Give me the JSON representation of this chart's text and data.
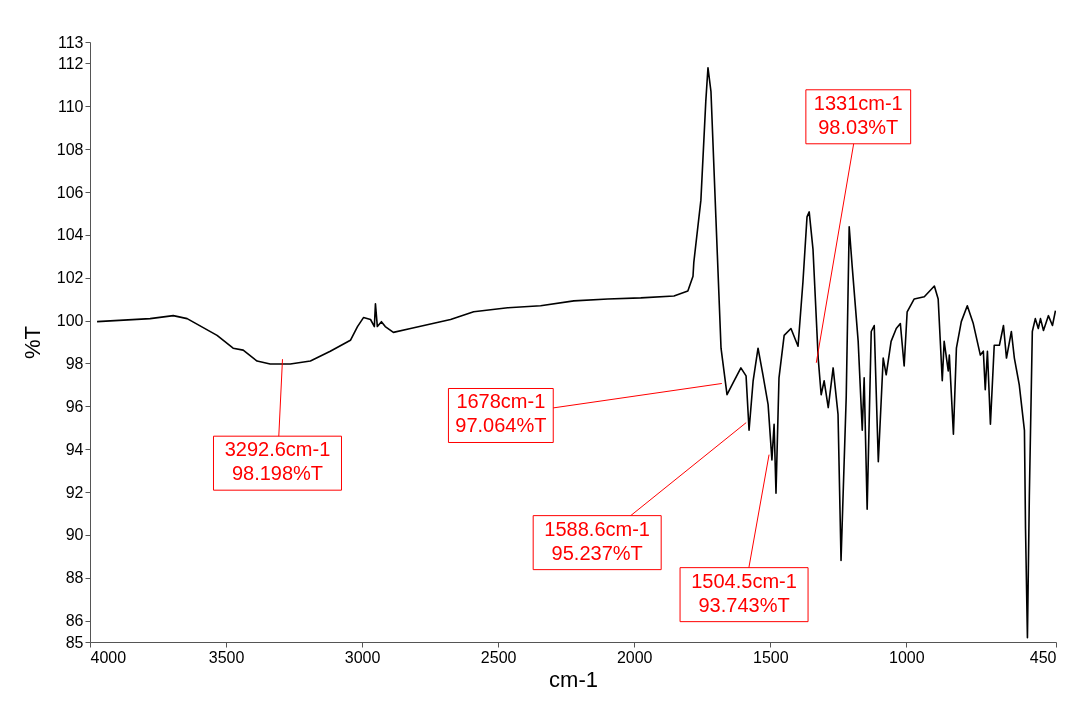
{
  "chart_data": {
    "type": "line",
    "xlabel": "cm-1",
    "ylabel": "%T",
    "color": "#000000",
    "xlim": [
      4000,
      450
    ],
    "xticks": [
      4000,
      3500,
      3000,
      2500,
      2000,
      1500,
      1000,
      450
    ],
    "ylim": [
      85,
      113
    ],
    "yticks": [
      85,
      86,
      88,
      90,
      92,
      94,
      96,
      98,
      100,
      102,
      104,
      106,
      108,
      110,
      112,
      113
    ],
    "x": [
      3974,
      3779,
      3694,
      3643,
      3533,
      3474,
      3437,
      3386,
      3338,
      3264,
      3190,
      3117,
      3043,
      3017,
      2995,
      2969,
      2955,
      2951,
      2944,
      2929,
      2915,
      2885,
      2822,
      2675,
      2590,
      2465,
      2344,
      2222,
      2097,
      1976,
      1854,
      1803,
      1784,
      1781,
      1755,
      1737,
      1729,
      1718,
      1700,
      1681,
      1659,
      1633,
      1608,
      1589,
      1578,
      1563,
      1545,
      1527,
      1508,
      1494,
      1486,
      1479,
      1468,
      1449,
      1424,
      1398,
      1380,
      1365,
      1357,
      1343,
      1324,
      1313,
      1302,
      1287,
      1269,
      1251,
      1240,
      1221,
      1210,
      1199,
      1177,
      1162,
      1155,
      1144,
      1129,
      1118,
      1103,
      1085,
      1074,
      1056,
      1037,
      1022,
      1008,
      997,
      971,
      934,
      897,
      883,
      868,
      861,
      846,
      842,
      827,
      816,
      798,
      776,
      754,
      728,
      717,
      710,
      702,
      691,
      677,
      658,
      643,
      632,
      614,
      603,
      585,
      566,
      562,
      555,
      548,
      537,
      526,
      515,
      507,
      496,
      478,
      463,
      452
    ],
    "values": [
      99.95,
      100.09,
      100.23,
      100.09,
      99.31,
      98.71,
      98.62,
      98.11,
      97.97,
      97.97,
      98.11,
      98.57,
      99.08,
      99.72,
      100.14,
      100.05,
      99.72,
      100.78,
      99.72,
      99.95,
      99.72,
      99.45,
      99.63,
      100.05,
      100.41,
      100.6,
      100.69,
      100.92,
      101.01,
      101.06,
      101.15,
      101.38,
      102.07,
      102.72,
      105.62,
      110.23,
      111.8,
      110.69,
      104.84,
      98.71,
      96.54,
      97.19,
      97.79,
      97.42,
      94.88,
      97.19,
      98.71,
      97.47,
      96.08,
      93.5,
      95.16,
      91.94,
      97.33,
      99.31,
      99.63,
      98.8,
      101.8,
      104.84,
      105.07,
      103.32,
      98.25,
      96.54,
      97.19,
      95.94,
      97.79,
      95.62,
      88.8,
      96.41,
      104.38,
      102.53,
      99.03,
      94.88,
      97.33,
      91.2,
      99.49,
      99.77,
      93.41,
      98.25,
      97.47,
      99.03,
      99.63,
      99.86,
      97.88,
      100.41,
      101.01,
      101.11,
      101.61,
      101.01,
      97.19,
      99.03,
      97.65,
      98.39,
      94.7,
      98.71,
      99.95,
      100.69,
      99.86,
      98.39,
      98.57,
      96.77,
      98.57,
      95.16,
      98.85,
      98.85,
      99.77,
      98.25,
      99.49,
      98.25,
      97.0,
      94.88,
      90.28,
      85.2,
      91.8,
      99.49,
      100.09,
      99.63,
      100.09,
      99.54,
      100.23,
      99.77,
      100.46
    ],
    "annotations": [
      {
        "text": "3292.6cm-1\n98.198%T",
        "x": 3292.6,
        "y": 98.198
      },
      {
        "text": "1678cm-1\n97.064%T",
        "x": 1678,
        "y": 97.064
      },
      {
        "text": "1588.6cm-1\n95.237%T",
        "x": 1588.6,
        "y": 95.237
      },
      {
        "text": "1504.5cm-1\n93.743%T",
        "x": 1504.5,
        "y": 93.743
      },
      {
        "text": "1331cm-1\n98.03%T",
        "x": 1331,
        "y": 98.03
      }
    ]
  }
}
